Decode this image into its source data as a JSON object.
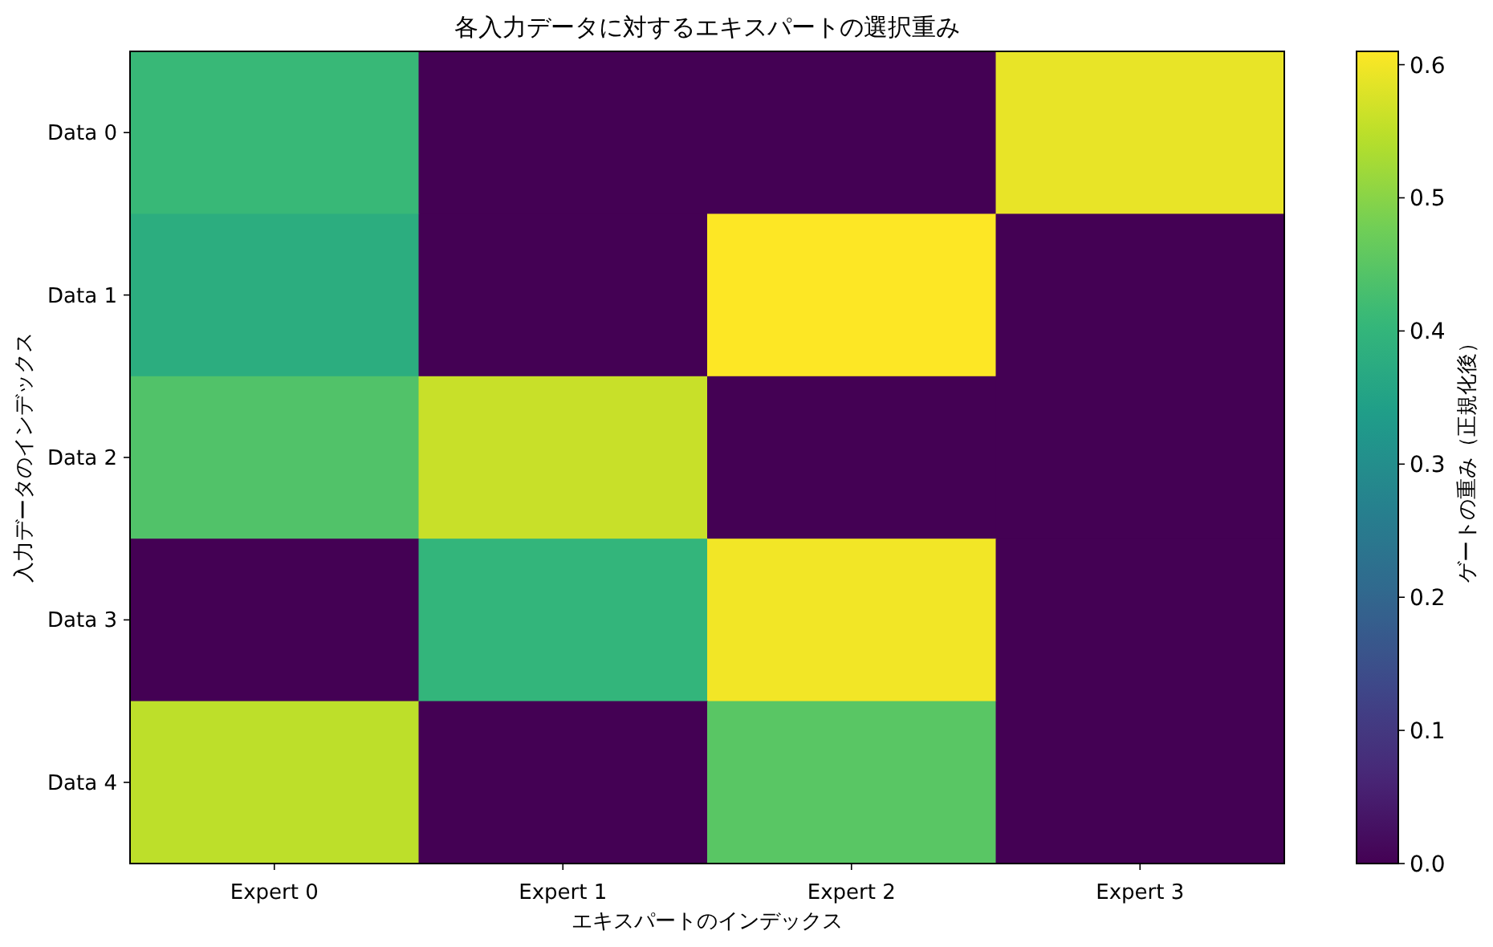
{
  "chart_data": {
    "type": "heatmap",
    "title": "各入力データに対するエキスパートの選択重み",
    "xlabel": "エキスパートのインデックス",
    "ylabel": "入力データのインデックス",
    "clabel": "ゲートの重み（正規化後）",
    "categories": [
      "Expert 0",
      "Expert 1",
      "Expert 2",
      "Expert 3"
    ],
    "y_categories": [
      "Data 0",
      "Data 1",
      "Data 2",
      "Data 3",
      "Data 4"
    ],
    "cells": [
      [
        0.41,
        0,
        0,
        0.59
      ],
      [
        0.38,
        0,
        0.61,
        0
      ],
      [
        0.44,
        0.56,
        0,
        0
      ],
      [
        0,
        0.4,
        0.6,
        0
      ],
      [
        0.55,
        0,
        0.45,
        0
      ]
    ],
    "clim": [
      0,
      0.61
    ],
    "cticks": [
      {
        "value": 0,
        "label": "0.0"
      },
      0.1,
      0.2,
      0.3,
      0.4,
      0.5,
      0.6
    ]
  }
}
